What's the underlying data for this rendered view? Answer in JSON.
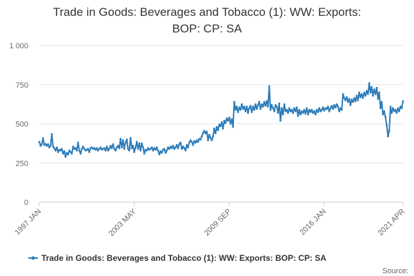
{
  "chart_data": {
    "type": "line",
    "title_lines": [
      "Trade in Goods: Beverages and Tobacco (1): WW: Exports:",
      "BOP: CP: SA"
    ],
    "xlabel": "",
    "ylabel": "",
    "ylim": [
      0,
      1000
    ],
    "y_ticks": [
      0,
      250,
      500,
      750,
      1000
    ],
    "y_tick_labels": [
      "0",
      "250",
      "500",
      "750",
      "1 000"
    ],
    "x_range_months": [
      0,
      291
    ],
    "x_ticks": [
      {
        "month": 0,
        "label": "1997 JAN"
      },
      {
        "month": 76,
        "label": "2003 MAY"
      },
      {
        "month": 152,
        "label": "2009 SEP"
      },
      {
        "month": 228,
        "label": "2016 JAN"
      },
      {
        "month": 291,
        "label": "2021 APR"
      }
    ],
    "grid": true,
    "color": "#2b7bb9",
    "legend": "Trade in Goods: Beverages and Tobacco (1): WW: Exports: BOP: CP: SA",
    "legend_position": "bottom",
    "source_label": "Source:",
    "series": [
      {
        "name": "Trade in Goods: Beverages and Tobacco (1): WW: Exports: BOP: CP: SA",
        "points": [
          [
            0,
            385
          ],
          [
            1,
            360
          ],
          [
            2,
            370
          ],
          [
            3,
            408
          ],
          [
            4,
            365
          ],
          [
            5,
            372
          ],
          [
            6,
            360
          ],
          [
            7,
            370
          ],
          [
            8,
            350
          ],
          [
            9,
            362
          ],
          [
            10,
            435
          ],
          [
            11,
            355
          ],
          [
            12,
            345
          ],
          [
            13,
            330
          ],
          [
            14,
            350
          ],
          [
            15,
            320
          ],
          [
            16,
            335
          ],
          [
            17,
            330
          ],
          [
            18,
            340
          ],
          [
            19,
            310
          ],
          [
            20,
            325
          ],
          [
            21,
            290
          ],
          [
            22,
            315
          ],
          [
            23,
            305
          ],
          [
            24,
            330
          ],
          [
            25,
            320
          ],
          [
            26,
            310
          ],
          [
            27,
            355
          ],
          [
            28,
            340
          ],
          [
            29,
            345
          ],
          [
            30,
            330
          ],
          [
            31,
            380
          ],
          [
            32,
            330
          ],
          [
            33,
            310
          ],
          [
            34,
            340
          ],
          [
            35,
            355
          ],
          [
            36,
            340
          ],
          [
            37,
            330
          ],
          [
            38,
            335
          ],
          [
            39,
            340
          ],
          [
            40,
            320
          ],
          [
            41,
            345
          ],
          [
            42,
            350
          ],
          [
            43,
            340
          ],
          [
            44,
            345
          ],
          [
            45,
            335
          ],
          [
            46,
            345
          ],
          [
            47,
            330
          ],
          [
            48,
            340
          ],
          [
            49,
            350
          ],
          [
            50,
            335
          ],
          [
            51,
            340
          ],
          [
            52,
            345
          ],
          [
            53,
            330
          ],
          [
            54,
            355
          ],
          [
            55,
            330
          ],
          [
            56,
            340
          ],
          [
            57,
            360
          ],
          [
            58,
            345
          ],
          [
            59,
            370
          ],
          [
            60,
            340
          ],
          [
            61,
            330
          ],
          [
            62,
            350
          ],
          [
            63,
            360
          ],
          [
            64,
            345
          ],
          [
            65,
            405
          ],
          [
            66,
            350
          ],
          [
            67,
            395
          ],
          [
            68,
            340
          ],
          [
            69,
            380
          ],
          [
            70,
            400
          ],
          [
            71,
            340
          ],
          [
            72,
            330
          ],
          [
            73,
            410
          ],
          [
            74,
            345
          ],
          [
            75,
            360
          ],
          [
            76,
            320
          ],
          [
            77,
            350
          ],
          [
            78,
            385
          ],
          [
            79,
            340
          ],
          [
            80,
            375
          ],
          [
            81,
            330
          ],
          [
            82,
            375
          ],
          [
            83,
            350
          ],
          [
            84,
            310
          ],
          [
            85,
            335
          ],
          [
            86,
            330
          ],
          [
            87,
            345
          ],
          [
            88,
            335
          ],
          [
            89,
            340
          ],
          [
            90,
            350
          ],
          [
            91,
            330
          ],
          [
            92,
            345
          ],
          [
            93,
            335
          ],
          [
            94,
            350
          ],
          [
            95,
            330
          ],
          [
            96,
            305
          ],
          [
            97,
            325
          ],
          [
            98,
            315
          ],
          [
            99,
            335
          ],
          [
            100,
            340
          ],
          [
            101,
            315
          ],
          [
            102,
            330
          ],
          [
            103,
            350
          ],
          [
            104,
            340
          ],
          [
            105,
            355
          ],
          [
            106,
            345
          ],
          [
            107,
            360
          ],
          [
            108,
            340
          ],
          [
            109,
            350
          ],
          [
            110,
            365
          ],
          [
            111,
            345
          ],
          [
            112,
            370
          ],
          [
            113,
            380
          ],
          [
            114,
            340
          ],
          [
            115,
            355
          ],
          [
            116,
            345
          ],
          [
            117,
            330
          ],
          [
            118,
            365
          ],
          [
            119,
            350
          ],
          [
            120,
            380
          ],
          [
            121,
            395
          ],
          [
            122,
            385
          ],
          [
            123,
            365
          ],
          [
            124,
            390
          ],
          [
            125,
            380
          ],
          [
            126,
            395
          ],
          [
            127,
            385
          ],
          [
            128,
            405
          ],
          [
            129,
            400
          ],
          [
            130,
            420
          ],
          [
            131,
            440
          ],
          [
            132,
            455
          ],
          [
            133,
            440
          ],
          [
            134,
            450
          ],
          [
            135,
            395
          ],
          [
            136,
            430
          ],
          [
            137,
            410
          ],
          [
            138,
            395
          ],
          [
            139,
            420
          ],
          [
            140,
            470
          ],
          [
            141,
            440
          ],
          [
            142,
            480
          ],
          [
            143,
            460
          ],
          [
            144,
            495
          ],
          [
            145,
            485
          ],
          [
            146,
            510
          ],
          [
            147,
            470
          ],
          [
            148,
            520
          ],
          [
            149,
            505
          ],
          [
            150,
            535
          ],
          [
            151,
            520
          ],
          [
            152,
            540
          ],
          [
            153,
            500
          ],
          [
            154,
            530
          ],
          [
            155,
            480
          ],
          [
            156,
            640
          ],
          [
            157,
            590
          ],
          [
            158,
            610
          ],
          [
            159,
            575
          ],
          [
            160,
            605
          ],
          [
            161,
            590
          ],
          [
            162,
            625
          ],
          [
            163,
            595
          ],
          [
            164,
            610
          ],
          [
            165,
            580
          ],
          [
            166,
            610
          ],
          [
            167,
            570
          ],
          [
            168,
            600
          ],
          [
            169,
            615
          ],
          [
            170,
            575
          ],
          [
            171,
            610
          ],
          [
            172,
            590
          ],
          [
            173,
            625
          ],
          [
            174,
            595
          ],
          [
            175,
            620
          ],
          [
            176,
            640
          ],
          [
            177,
            595
          ],
          [
            178,
            625
          ],
          [
            179,
            610
          ],
          [
            180,
            640
          ],
          [
            181,
            615
          ],
          [
            182,
            645
          ],
          [
            183,
            610
          ],
          [
            184,
            740
          ],
          [
            185,
            590
          ],
          [
            186,
            620
          ],
          [
            187,
            600
          ],
          [
            188,
            580
          ],
          [
            189,
            620
          ],
          [
            190,
            610
          ],
          [
            191,
            570
          ],
          [
            192,
            630
          ],
          [
            193,
            520
          ],
          [
            194,
            600
          ],
          [
            195,
            560
          ],
          [
            196,
            625
          ],
          [
            197,
            580
          ],
          [
            198,
            590
          ],
          [
            199,
            570
          ],
          [
            200,
            600
          ],
          [
            201,
            580
          ],
          [
            202,
            590
          ],
          [
            203,
            570
          ],
          [
            204,
            600
          ],
          [
            205,
            580
          ],
          [
            206,
            605
          ],
          [
            207,
            550
          ],
          [
            208,
            590
          ],
          [
            209,
            560
          ],
          [
            210,
            580
          ],
          [
            211,
            570
          ],
          [
            212,
            590
          ],
          [
            213,
            565
          ],
          [
            214,
            600
          ],
          [
            215,
            560
          ],
          [
            216,
            590
          ],
          [
            217,
            575
          ],
          [
            218,
            590
          ],
          [
            219,
            570
          ],
          [
            220,
            580
          ],
          [
            221,
            560
          ],
          [
            222,
            590
          ],
          [
            223,
            575
          ],
          [
            224,
            600
          ],
          [
            225,
            580
          ],
          [
            226,
            590
          ],
          [
            227,
            605
          ],
          [
            228,
            585
          ],
          [
            229,
            600
          ],
          [
            230,
            595
          ],
          [
            231,
            610
          ],
          [
            232,
            580
          ],
          [
            233,
            600
          ],
          [
            234,
            615
          ],
          [
            235,
            595
          ],
          [
            236,
            620
          ],
          [
            237,
            605
          ],
          [
            238,
            625
          ],
          [
            239,
            610
          ],
          [
            240,
            580
          ],
          [
            241,
            600
          ],
          [
            242,
            590
          ],
          [
            243,
            690
          ],
          [
            244,
            665
          ],
          [
            245,
            650
          ],
          [
            246,
            670
          ],
          [
            247,
            640
          ],
          [
            248,
            660
          ],
          [
            249,
            620
          ],
          [
            250,
            655
          ],
          [
            251,
            640
          ],
          [
            252,
            665
          ],
          [
            253,
            645
          ],
          [
            254,
            680
          ],
          [
            255,
            650
          ],
          [
            256,
            700
          ],
          [
            257,
            670
          ],
          [
            258,
            690
          ],
          [
            259,
            665
          ],
          [
            260,
            700
          ],
          [
            261,
            680
          ],
          [
            262,
            710
          ],
          [
            263,
            690
          ],
          [
            264,
            760
          ],
          [
            265,
            700
          ],
          [
            266,
            735
          ],
          [
            267,
            680
          ],
          [
            268,
            720
          ],
          [
            269,
            690
          ],
          [
            270,
            730
          ],
          [
            271,
            660
          ],
          [
            272,
            700
          ],
          [
            273,
            600
          ],
          [
            274,
            640
          ],
          [
            275,
            560
          ],
          [
            276,
            580
          ],
          [
            277,
            545
          ],
          [
            278,
            490
          ],
          [
            279,
            420
          ],
          [
            280,
            455
          ],
          [
            281,
            610
          ],
          [
            282,
            570
          ],
          [
            283,
            600
          ],
          [
            284,
            580
          ],
          [
            285,
            590
          ],
          [
            286,
            570
          ],
          [
            287,
            600
          ],
          [
            288,
            580
          ],
          [
            289,
            610
          ],
          [
            290,
            600
          ],
          [
            291,
            645
          ]
        ]
      }
    ]
  }
}
